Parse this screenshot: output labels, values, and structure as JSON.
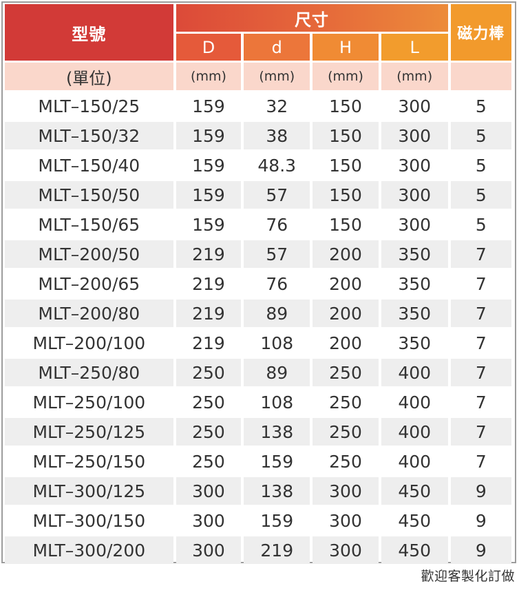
{
  "headers": {
    "model": "型號",
    "size_group": "尺寸",
    "magnet_bars": "磁力棒",
    "dims": [
      "D",
      "d",
      "H",
      "L"
    ]
  },
  "units": {
    "model": "(單位)",
    "dims": [
      "(mm)",
      "(mm)",
      "(mm)",
      "(mm)"
    ],
    "magnet_bars": ""
  },
  "rows": [
    [
      "MLT–150/25",
      "159",
      "32",
      "150",
      "300",
      "5"
    ],
    [
      "MLT–150/32",
      "159",
      "38",
      "150",
      "300",
      "5"
    ],
    [
      "MLT–150/40",
      "159",
      "48.3",
      "150",
      "300",
      "5"
    ],
    [
      "MLT–150/50",
      "159",
      "57",
      "150",
      "300",
      "5"
    ],
    [
      "MLT–150/65",
      "159",
      "76",
      "150",
      "300",
      "5"
    ],
    [
      "MLT–200/50",
      "219",
      "57",
      "200",
      "350",
      "7"
    ],
    [
      "MLT–200/65",
      "219",
      "76",
      "200",
      "350",
      "7"
    ],
    [
      "MLT–200/80",
      "219",
      "89",
      "200",
      "350",
      "7"
    ],
    [
      "MLT–200/100",
      "219",
      "108",
      "200",
      "350",
      "7"
    ],
    [
      "MLT–250/80",
      "250",
      "89",
      "250",
      "400",
      "7"
    ],
    [
      "MLT–250/100",
      "250",
      "108",
      "250",
      "400",
      "7"
    ],
    [
      "MLT–250/125",
      "250",
      "138",
      "250",
      "400",
      "7"
    ],
    [
      "MLT–250/150",
      "250",
      "159",
      "250",
      "400",
      "7"
    ],
    [
      "MLT–300/125",
      "300",
      "138",
      "300",
      "450",
      "9"
    ],
    [
      "MLT–300/150",
      "300",
      "159",
      "300",
      "450",
      "9"
    ],
    [
      "MLT–300/200",
      "300",
      "219",
      "300",
      "450",
      "9"
    ]
  ],
  "footer": "歡迎客製化訂做"
}
